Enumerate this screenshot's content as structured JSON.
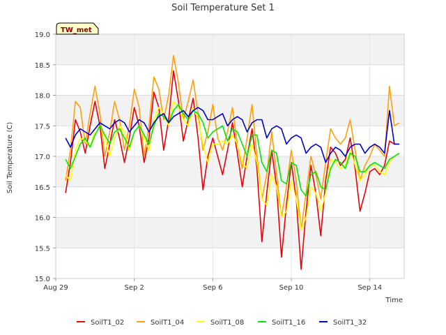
{
  "chart_data": {
    "type": "line",
    "title": "Soil Temperature Set 1",
    "xlabel": "Time",
    "ylabel": "Soil Temperature (C)",
    "badge": "TW_met",
    "xlim": [
      "2022-08-29",
      "2022-09-15T18:00"
    ],
    "ylim": [
      15.0,
      19.0
    ],
    "x_ticks": [
      {
        "date": "2022-08-29",
        "label": "Aug 29"
      },
      {
        "date": "2022-09-02",
        "label": "Sep 2"
      },
      {
        "date": "2022-09-06",
        "label": "Sep 6"
      },
      {
        "date": "2022-09-10",
        "label": "Sep 10"
      },
      {
        "date": "2022-09-14",
        "label": "Sep 14"
      }
    ],
    "y_ticks": [
      "15.0",
      "15.5",
      "16.0",
      "16.5",
      "17.0",
      "17.5",
      "18.0",
      "18.5",
      "19.0"
    ],
    "grid": true,
    "legend_position": "bottom",
    "x": [
      "2022-08-29T12:00",
      "2022-08-29T18:00",
      "2022-08-30T00:00",
      "2022-08-30T06:00",
      "2022-08-30T12:00",
      "2022-08-30T18:00",
      "2022-08-31T00:00",
      "2022-08-31T06:00",
      "2022-08-31T12:00",
      "2022-08-31T18:00",
      "2022-09-01T00:00",
      "2022-09-01T06:00",
      "2022-09-01T12:00",
      "2022-09-01T18:00",
      "2022-09-02T00:00",
      "2022-09-02T06:00",
      "2022-09-02T12:00",
      "2022-09-02T18:00",
      "2022-09-03T00:00",
      "2022-09-03T06:00",
      "2022-09-03T12:00",
      "2022-09-03T18:00",
      "2022-09-04T00:00",
      "2022-09-04T06:00",
      "2022-09-04T12:00",
      "2022-09-04T18:00",
      "2022-09-05T00:00",
      "2022-09-05T06:00",
      "2022-09-05T12:00",
      "2022-09-05T18:00",
      "2022-09-06T00:00",
      "2022-09-06T06:00",
      "2022-09-06T12:00",
      "2022-09-06T18:00",
      "2022-09-07T00:00",
      "2022-09-07T06:00",
      "2022-09-07T12:00",
      "2022-09-07T18:00",
      "2022-09-08T00:00",
      "2022-09-08T06:00",
      "2022-09-08T12:00",
      "2022-09-08T18:00",
      "2022-09-09T00:00",
      "2022-09-09T06:00",
      "2022-09-09T12:00",
      "2022-09-09T18:00",
      "2022-09-10T00:00",
      "2022-09-10T06:00",
      "2022-09-10T12:00",
      "2022-09-10T18:00",
      "2022-09-11T00:00",
      "2022-09-11T06:00",
      "2022-09-11T12:00",
      "2022-09-11T18:00",
      "2022-09-12T00:00",
      "2022-09-12T06:00",
      "2022-09-12T12:00",
      "2022-09-12T18:00",
      "2022-09-13T00:00",
      "2022-09-13T06:00",
      "2022-09-13T12:00",
      "2022-09-13T18:00",
      "2022-09-14T00:00",
      "2022-09-14T06:00",
      "2022-09-14T12:00",
      "2022-09-14T18:00",
      "2022-09-15T00:00",
      "2022-09-15T06:00",
      "2022-09-15T12:00"
    ],
    "series": [
      {
        "name": "SoilT1_02",
        "color": "#e8000b",
        "values": [
          16.4,
          16.9,
          17.6,
          17.4,
          17.05,
          17.5,
          17.9,
          17.5,
          16.8,
          17.2,
          17.6,
          17.3,
          16.9,
          17.3,
          17.8,
          17.5,
          16.9,
          17.3,
          18.05,
          17.8,
          17.1,
          17.6,
          18.4,
          17.9,
          17.25,
          17.6,
          17.95,
          17.3,
          16.45,
          17.0,
          17.3,
          17.0,
          16.7,
          17.1,
          17.55,
          17.05,
          16.5,
          17.0,
          17.45,
          16.8,
          15.6,
          16.4,
          17.1,
          16.5,
          15.35,
          16.2,
          16.9,
          16.3,
          15.15,
          16.1,
          16.85,
          16.4,
          15.7,
          16.6,
          17.15,
          17.05,
          16.85,
          16.95,
          17.3,
          16.8,
          16.1,
          16.4,
          16.75,
          16.8,
          16.7,
          16.85,
          17.25,
          17.2,
          17.2
        ]
      },
      {
        "name": "SoilT1_04",
        "color": "#ff9f0a",
        "values": [
          16.6,
          17.1,
          17.9,
          17.8,
          17.2,
          17.7,
          18.15,
          17.7,
          17.0,
          17.4,
          17.9,
          17.6,
          17.1,
          17.5,
          18.1,
          17.8,
          17.0,
          17.5,
          18.3,
          18.1,
          17.6,
          18.0,
          18.65,
          18.2,
          17.6,
          17.9,
          18.25,
          17.7,
          17.1,
          17.4,
          17.85,
          17.3,
          17.1,
          17.4,
          17.8,
          17.2,
          16.8,
          17.3,
          17.85,
          17.0,
          16.3,
          16.7,
          17.4,
          16.7,
          16.0,
          16.5,
          17.1,
          16.6,
          15.8,
          16.4,
          17.0,
          16.7,
          16.3,
          16.9,
          17.45,
          17.3,
          17.2,
          17.3,
          17.6,
          17.1,
          16.6,
          16.85,
          17.0,
          17.2,
          17.1,
          17.0,
          18.15,
          17.5,
          17.55
        ]
      },
      {
        "name": "SoilT1_08",
        "color": "#ffff00",
        "values": [
          16.7,
          16.6,
          17.1,
          17.3,
          17.25,
          17.15,
          17.45,
          17.5,
          17.3,
          17.0,
          17.3,
          17.5,
          17.4,
          17.1,
          17.4,
          17.5,
          17.3,
          17.1,
          17.6,
          17.8,
          17.7,
          17.5,
          17.9,
          17.8,
          17.6,
          17.5,
          17.8,
          17.6,
          17.2,
          16.9,
          17.2,
          17.2,
          17.25,
          17.2,
          17.35,
          17.2,
          16.9,
          16.8,
          17.2,
          16.9,
          16.3,
          16.2,
          16.7,
          16.5,
          16.0,
          16.1,
          16.6,
          16.3,
          15.8,
          16.0,
          16.5,
          16.4,
          16.1,
          16.4,
          16.95,
          16.9,
          16.8,
          16.85,
          17.1,
          16.85,
          16.6,
          16.7,
          16.85,
          16.85,
          16.75,
          16.7,
          16.9,
          17.0,
          17.05
        ]
      },
      {
        "name": "SoilT1_16",
        "color": "#00e600",
        "values": [
          16.95,
          16.8,
          17.0,
          17.2,
          17.3,
          17.15,
          17.35,
          17.5,
          17.35,
          17.2,
          17.4,
          17.45,
          17.3,
          17.15,
          17.4,
          17.5,
          17.35,
          17.2,
          17.5,
          17.7,
          17.65,
          17.55,
          17.75,
          17.85,
          17.7,
          17.6,
          17.75,
          17.7,
          17.55,
          17.3,
          17.4,
          17.45,
          17.5,
          17.25,
          17.45,
          17.4,
          17.2,
          17.0,
          17.35,
          17.35,
          16.9,
          16.75,
          17.1,
          17.05,
          16.6,
          16.55,
          16.9,
          16.85,
          16.45,
          16.35,
          16.7,
          16.75,
          16.5,
          16.45,
          16.8,
          16.95,
          16.9,
          16.8,
          17.05,
          17.0,
          16.75,
          16.75,
          16.85,
          16.9,
          16.85,
          16.8,
          16.95,
          17.0,
          17.05
        ]
      },
      {
        "name": "SoilT1_32",
        "color": "#0000cc",
        "values": [
          17.3,
          17.15,
          17.35,
          17.45,
          17.4,
          17.35,
          17.45,
          17.55,
          17.5,
          17.45,
          17.55,
          17.6,
          17.55,
          17.4,
          17.5,
          17.6,
          17.55,
          17.4,
          17.55,
          17.65,
          17.7,
          17.55,
          17.65,
          17.7,
          17.75,
          17.65,
          17.75,
          17.8,
          17.75,
          17.6,
          17.6,
          17.65,
          17.7,
          17.5,
          17.6,
          17.65,
          17.6,
          17.4,
          17.55,
          17.6,
          17.6,
          17.3,
          17.45,
          17.5,
          17.45,
          17.2,
          17.3,
          17.35,
          17.3,
          17.05,
          17.15,
          17.2,
          17.15,
          16.9,
          17.05,
          17.15,
          17.1,
          17.0,
          17.15,
          17.2,
          17.2,
          17.05,
          17.15,
          17.2,
          17.15,
          17.05,
          17.75,
          17.2,
          17.2
        ]
      }
    ]
  }
}
